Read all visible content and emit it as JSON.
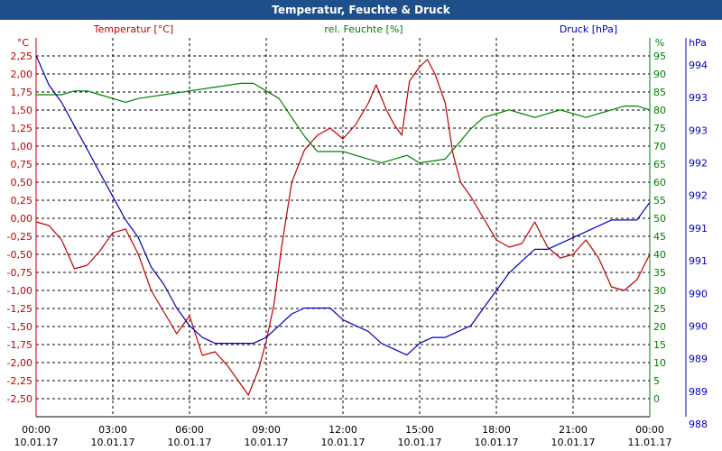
{
  "window": {
    "title": "Temperatur, Feuchte & Druck"
  },
  "legend": {
    "temperature": "Temperatur [°C]",
    "humidity": "rel. Feuchte [%]",
    "pressure": "Druck [hPa]"
  },
  "axes": {
    "left_unit": "°C",
    "right1_unit": "%",
    "right2_unit": "hPa"
  },
  "colors": {
    "temperature": "#c00000",
    "humidity": "#008000",
    "pressure": "#0000c0",
    "titlebar": "#1f4f8b",
    "grid": "#000000"
  },
  "chart_data": {
    "type": "line",
    "grid": true,
    "x_ticks": [
      {
        "time": "00:00",
        "date": "10.01.17"
      },
      {
        "time": "03:00",
        "date": "10.01.17"
      },
      {
        "time": "06:00",
        "date": "10.01.17"
      },
      {
        "time": "09:00",
        "date": "10.01.17"
      },
      {
        "time": "12:00",
        "date": "10.01.17"
      },
      {
        "time": "15:00",
        "date": "10.01.17"
      },
      {
        "time": "18:00",
        "date": "10.01.17"
      },
      {
        "time": "21:00",
        "date": "10.01.17"
      },
      {
        "time": "00:00",
        "date": "11.01.17"
      }
    ],
    "x_range_hours": [
      0,
      24
    ],
    "y_left": {
      "label": "°C",
      "range": [
        -2.75,
        2.5
      ],
      "tick_labels": [
        "2,25",
        "2,00",
        "1,75",
        "1,50",
        "1,25",
        "1,00",
        "0,75",
        "0,50",
        "0,25",
        "0,00",
        "-0,25",
        "-0,50",
        "-0,75",
        "-1,00",
        "-1,25",
        "-1,50",
        "-1,75",
        "-2,00",
        "-2,25",
        "-2,50"
      ]
    },
    "y_right_humidity": {
      "label": "%",
      "range": [
        0,
        100
      ],
      "tick_labels": [
        "95",
        "90",
        "85",
        "80",
        "75",
        "70",
        "65",
        "60",
        "55",
        "50",
        "45",
        "40",
        "35",
        "30",
        "25",
        "20",
        "15",
        "10",
        "5",
        "0"
      ]
    },
    "y_right_pressure": {
      "label": "hPa",
      "tick_labels": [
        "994",
        "993",
        "993",
        "992",
        "992",
        "991",
        "991",
        "990",
        "990",
        "989",
        "989",
        "988"
      ]
    },
    "series": [
      {
        "name": "Temperatur [°C]",
        "axis": "left",
        "points": [
          [
            0,
            -0.05
          ],
          [
            0.5,
            -0.1
          ],
          [
            1,
            -0.3
          ],
          [
            1.5,
            -0.7
          ],
          [
            2,
            -0.65
          ],
          [
            2.5,
            -0.45
          ],
          [
            3,
            -0.2
          ],
          [
            3.5,
            -0.15
          ],
          [
            4,
            -0.5
          ],
          [
            4.5,
            -1.0
          ],
          [
            5,
            -1.3
          ],
          [
            5.5,
            -1.6
          ],
          [
            6,
            -1.35
          ],
          [
            6.5,
            -1.9
          ],
          [
            7,
            -1.85
          ],
          [
            7.5,
            -2.05
          ],
          [
            8,
            -2.3
          ],
          [
            8.3,
            -2.45
          ],
          [
            8.7,
            -2.1
          ],
          [
            9,
            -1.7
          ],
          [
            9.3,
            -1.2
          ],
          [
            9.6,
            -0.4
          ],
          [
            10,
            0.5
          ],
          [
            10.5,
            0.95
          ],
          [
            11,
            1.15
          ],
          [
            11.5,
            1.25
          ],
          [
            12,
            1.1
          ],
          [
            12.5,
            1.3
          ],
          [
            13,
            1.6
          ],
          [
            13.3,
            1.85
          ],
          [
            13.7,
            1.5
          ],
          [
            14,
            1.3
          ],
          [
            14.3,
            1.15
          ],
          [
            14.6,
            1.9
          ],
          [
            15,
            2.1
          ],
          [
            15.3,
            2.2
          ],
          [
            15.6,
            2.0
          ],
          [
            16,
            1.6
          ],
          [
            16.3,
            0.9
          ],
          [
            16.6,
            0.5
          ],
          [
            17,
            0.3
          ],
          [
            17.5,
            0.0
          ],
          [
            18,
            -0.3
          ],
          [
            18.5,
            -0.4
          ],
          [
            19,
            -0.35
          ],
          [
            19.5,
            -0.05
          ],
          [
            20,
            -0.4
          ],
          [
            20.5,
            -0.55
          ],
          [
            21,
            -0.5
          ],
          [
            21.5,
            -0.3
          ],
          [
            22,
            -0.55
          ],
          [
            22.5,
            -0.95
          ],
          [
            23,
            -1.0
          ],
          [
            23.5,
            -0.85
          ],
          [
            24,
            -0.5
          ]
        ]
      },
      {
        "name": "rel. Feuchte [%]",
        "axis": "right1",
        "points": [
          [
            0,
            85
          ],
          [
            1,
            85
          ],
          [
            1.5,
            86
          ],
          [
            2,
            86
          ],
          [
            2.5,
            85
          ],
          [
            3,
            84
          ],
          [
            3.5,
            83
          ],
          [
            4,
            84
          ],
          [
            5,
            85
          ],
          [
            6,
            86
          ],
          [
            7,
            87
          ],
          [
            8,
            88
          ],
          [
            8.5,
            88
          ],
          [
            9,
            86
          ],
          [
            9.5,
            84
          ],
          [
            10,
            79
          ],
          [
            10.5,
            74
          ],
          [
            11,
            70
          ],
          [
            12,
            70
          ],
          [
            13,
            68
          ],
          [
            13.5,
            67
          ],
          [
            14,
            68
          ],
          [
            14.5,
            69
          ],
          [
            15,
            67
          ],
          [
            16,
            68
          ],
          [
            16.5,
            72
          ],
          [
            17,
            76
          ],
          [
            17.5,
            79
          ],
          [
            18,
            80
          ],
          [
            18.5,
            81
          ],
          [
            19,
            80
          ],
          [
            19.5,
            79
          ],
          [
            20,
            80
          ],
          [
            20.5,
            81
          ],
          [
            21,
            80
          ],
          [
            21.5,
            79
          ],
          [
            22,
            80
          ],
          [
            22.5,
            81
          ],
          [
            23,
            82
          ],
          [
            23.5,
            82
          ],
          [
            24,
            81
          ]
        ]
      },
      {
        "name": "Druck [hPa]",
        "axis": "right2",
        "points": [
          [
            0,
            994.2
          ],
          [
            0.5,
            993.7
          ],
          [
            1,
            993.4
          ],
          [
            1.5,
            993.0
          ],
          [
            2,
            992.6
          ],
          [
            2.5,
            992.2
          ],
          [
            3,
            991.8
          ],
          [
            3.5,
            991.4
          ],
          [
            4,
            991.1
          ],
          [
            4.5,
            990.6
          ],
          [
            5,
            990.3
          ],
          [
            5.5,
            989.9
          ],
          [
            6,
            989.6
          ],
          [
            6.5,
            989.4
          ],
          [
            7,
            989.3
          ],
          [
            7.5,
            989.3
          ],
          [
            8,
            989.3
          ],
          [
            8.5,
            989.3
          ],
          [
            9,
            989.4
          ],
          [
            9.5,
            989.6
          ],
          [
            10,
            989.8
          ],
          [
            10.5,
            989.9
          ],
          [
            11,
            989.9
          ],
          [
            11.5,
            989.9
          ],
          [
            12,
            989.7
          ],
          [
            12.5,
            989.6
          ],
          [
            13,
            989.5
          ],
          [
            13.5,
            989.3
          ],
          [
            14,
            989.2
          ],
          [
            14.5,
            989.1
          ],
          [
            15,
            989.3
          ],
          [
            15.5,
            989.4
          ],
          [
            16,
            989.4
          ],
          [
            16.5,
            989.5
          ],
          [
            17,
            989.6
          ],
          [
            17.5,
            989.9
          ],
          [
            18,
            990.2
          ],
          [
            18.5,
            990.5
          ],
          [
            19,
            990.7
          ],
          [
            19.5,
            990.9
          ],
          [
            20,
            990.9
          ],
          [
            20.5,
            991.0
          ],
          [
            21,
            991.1
          ],
          [
            21.5,
            991.2
          ],
          [
            22,
            991.3
          ],
          [
            22.5,
            991.4
          ],
          [
            23,
            991.4
          ],
          [
            23.5,
            991.4
          ],
          [
            24,
            991.7
          ]
        ]
      }
    ]
  }
}
